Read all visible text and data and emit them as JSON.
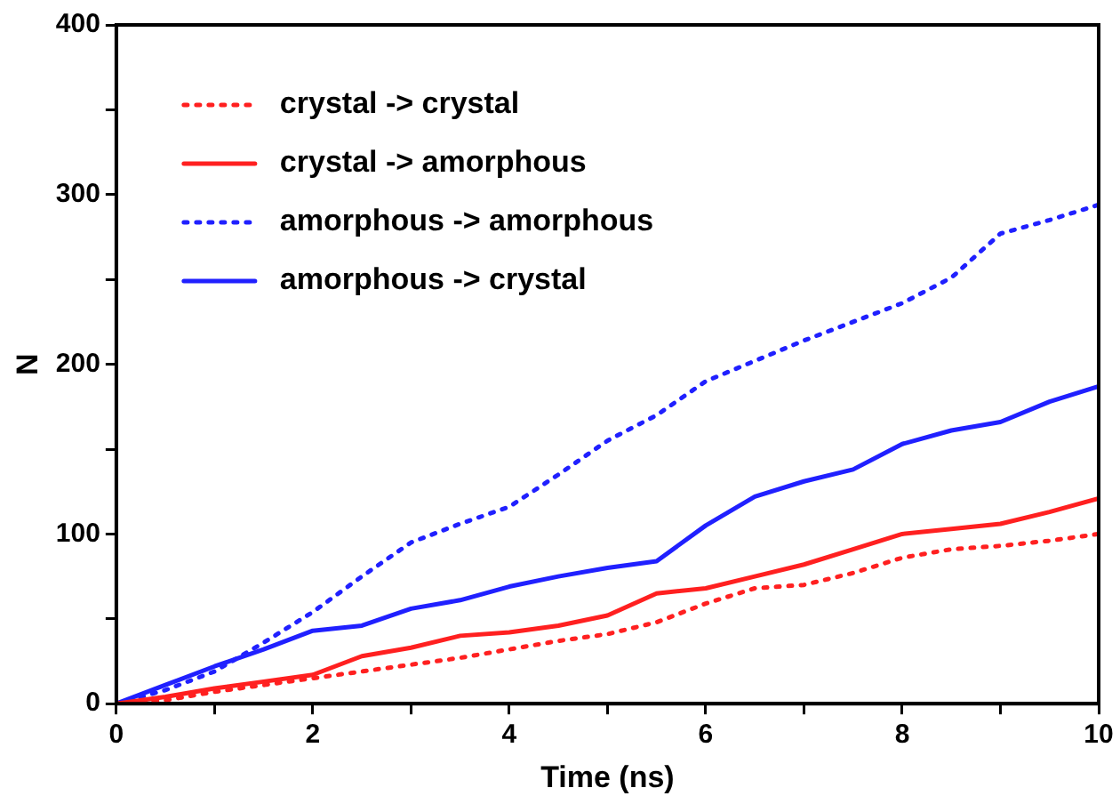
{
  "chart_data": {
    "type": "line",
    "xlabel": "Time (ns)",
    "ylabel": "N",
    "x": [
      0,
      0.5,
      1,
      1.5,
      2,
      2.5,
      3,
      3.5,
      4,
      4.5,
      5,
      5.5,
      6,
      6.5,
      7,
      7.5,
      8,
      8.5,
      9,
      9.5,
      10
    ],
    "series": [
      {
        "name": "crystal -> crystal",
        "color": "#ff2020",
        "line_style": "dotted",
        "values": [
          0,
          2,
          7,
          11,
          15,
          19,
          23,
          27,
          32,
          37,
          41,
          48,
          59,
          68,
          70,
          77,
          86,
          91,
          93,
          96,
          100
        ]
      },
      {
        "name": "crystal -> amorphous",
        "color": "#ff2020",
        "line_style": "solid",
        "values": [
          0,
          4,
          9,
          13,
          17,
          28,
          33,
          40,
          42,
          46,
          52,
          65,
          68,
          75,
          82,
          91,
          100,
          103,
          106,
          113,
          121
        ]
      },
      {
        "name": "amorphous -> amorphous",
        "color": "#2020ff",
        "line_style": "dotted",
        "values": [
          0,
          8,
          19,
          36,
          54,
          75,
          95,
          106,
          116,
          135,
          155,
          170,
          190,
          202,
          214,
          225,
          236,
          251,
          277,
          285,
          294
        ]
      },
      {
        "name": "amorphous -> crystal",
        "color": "#2020ff",
        "line_style": "solid",
        "values": [
          0,
          11,
          22,
          32,
          43,
          46,
          56,
          61,
          69,
          75,
          80,
          84,
          105,
          122,
          131,
          138,
          153,
          161,
          166,
          178,
          187
        ]
      }
    ],
    "xlim": [
      0,
      10
    ],
    "xticks": [
      0,
      {
        "value": 1,
        "label": null
      },
      2,
      {
        "value": 3,
        "label": null
      },
      4,
      {
        "value": 5,
        "label": null
      },
      6,
      {
        "value": 7,
        "label": null
      },
      8,
      {
        "value": 9,
        "label": null
      },
      10
    ],
    "ylim": [
      0,
      400
    ],
    "yticks": [
      0,
      {
        "value": 50,
        "label": null
      },
      100,
      {
        "value": 150,
        "label": null
      },
      200,
      {
        "value": 250,
        "label": null
      },
      300,
      {
        "value": 350,
        "label": null
      },
      400
    ],
    "grid": false,
    "legend": "top left",
    "marker": "none"
  }
}
